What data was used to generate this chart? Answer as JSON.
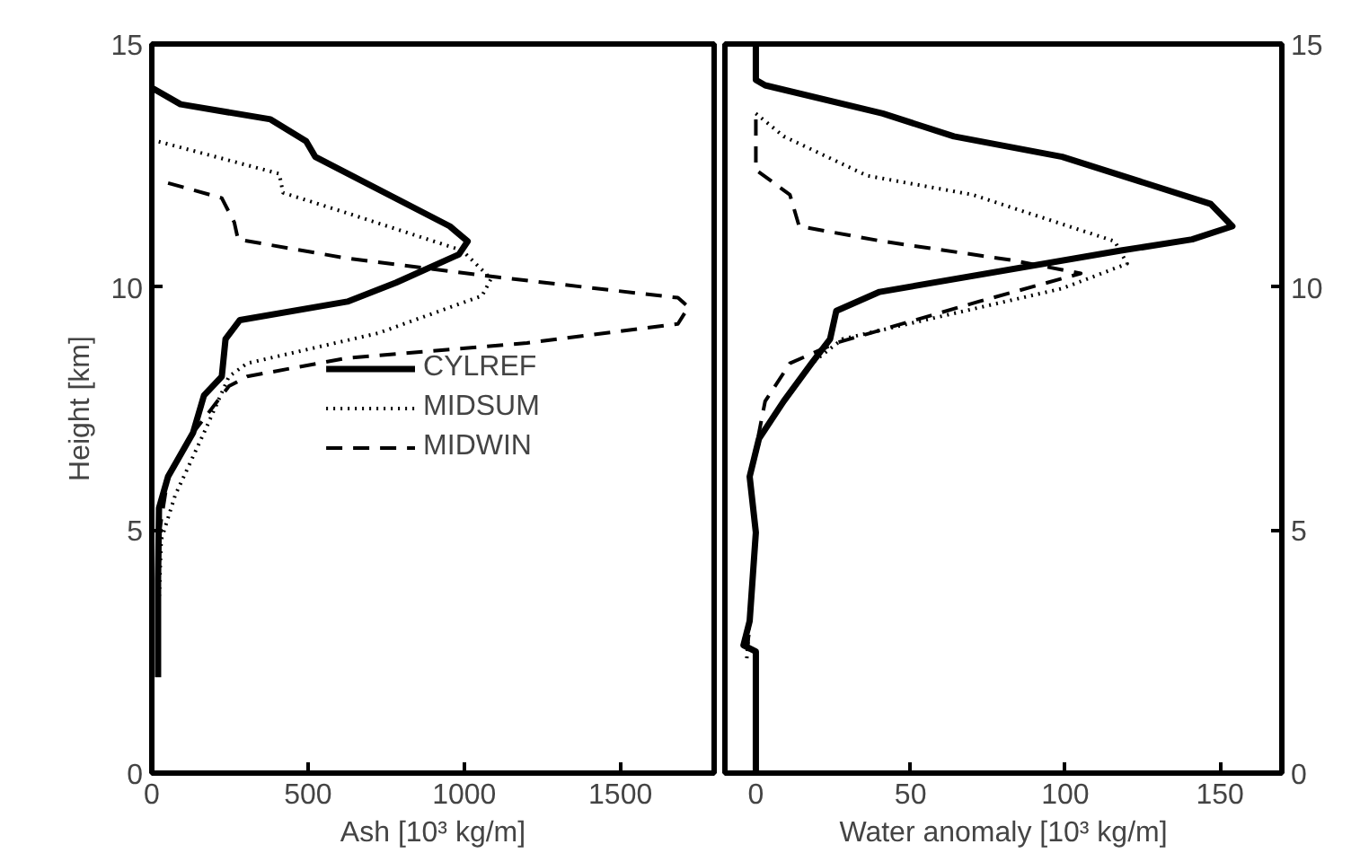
{
  "chart_data": [
    {
      "type": "line",
      "orientation": "horizontal",
      "xlabel": "Ash [10³ kg/m]",
      "ylabel": "Height [km]",
      "xlim": [
        0,
        1800
      ],
      "xticks": [
        0,
        500,
        1000,
        1500
      ],
      "ylim": [
        0,
        15
      ],
      "yticks": [
        0,
        5,
        10,
        15
      ],
      "grid": false,
      "legend": "center",
      "series": [
        {
          "name": "CYLREF",
          "color": "#000000",
          "line_style": "solid",
          "x": [
            14.1,
            13.76,
            13.45,
            13.0,
            12.68,
            11.25,
            10.94,
            10.67,
            10.09,
            9.7,
            9.32,
            8.93,
            8.16,
            7.77,
            7.0,
            6.1,
            5.45,
            4.0,
            3.0,
            1.97
          ],
          "values": [
            0,
            92,
            380,
            494,
            523,
            954,
            1011,
            983,
            782,
            626,
            282,
            236,
            224,
            167,
            132,
            52,
            23,
            20,
            20,
            20
          ]
        },
        {
          "name": "MIDSUM",
          "color": "#000000",
          "line_style": "dotted",
          "x": [
            13.03,
            12.33,
            11.94,
            11.52,
            10.75,
            10.17,
            9.82,
            9.05,
            8.43,
            8.16,
            7.0,
            5.72,
            4.8,
            3.0,
            2.0
          ],
          "values": [
            0,
            408,
            420,
            626,
            994,
            1086,
            1057,
            724,
            305,
            247,
            167,
            75,
            30,
            20,
            20
          ]
        },
        {
          "name": "MIDWIN",
          "color": "#000000",
          "line_style": "dashed",
          "x": [
            12.14,
            11.83,
            11.33,
            10.98,
            10.59,
            10.2,
            9.78,
            9.59,
            9.24,
            8.85,
            8.54,
            8.16,
            7.96,
            7.0,
            6.1,
            5.0,
            3.0,
            2.0
          ],
          "values": [
            52,
            224,
            264,
            276,
            626,
            1109,
            1684,
            1718,
            1684,
            1201,
            626,
            305,
            247,
            132,
            52,
            25,
            20,
            20
          ]
        }
      ]
    },
    {
      "type": "line",
      "orientation": "horizontal",
      "xlabel": "Water anomaly [10³ kg/m]",
      "xlim": [
        -10,
        170
      ],
      "xticks": [
        0,
        50,
        100,
        150
      ],
      "ylim": [
        0,
        15
      ],
      "yticks": [
        0,
        5,
        10,
        15
      ],
      "grid": false,
      "series": [
        {
          "color": "#000000",
          "line_style": "solid",
          "x": [
            15.0,
            14.26,
            14.15,
            13.57,
            13.1,
            12.68,
            11.71,
            11.25,
            10.98,
            10.75,
            9.9,
            9.51,
            8.93,
            8.43,
            7.65,
            6.88,
            6.1,
            4.95,
            3.13,
            2.63,
            2.5,
            0
          ],
          "values": [
            0,
            0,
            3,
            41,
            64,
            99,
            147,
            154,
            141,
            118,
            40,
            26,
            24,
            18,
            9,
            1,
            -2,
            0,
            -2,
            -4,
            0,
            0
          ]
        },
        {
          "color": "#000000",
          "line_style": "dotted",
          "x": [
            13.57,
            13.1,
            12.29,
            11.9,
            10.94,
            10.48,
            9.97,
            8.93,
            8.43,
            7.65,
            7.0,
            6.1,
            4.95,
            3.13,
            2.3
          ],
          "values": [
            0,
            9,
            36,
            70,
            116,
            120,
            99,
            28,
            18,
            9,
            2,
            -2,
            0,
            -2,
            -3
          ]
        },
        {
          "color": "#000000",
          "line_style": "dashed",
          "x": [
            13.45,
            12.41,
            11.9,
            11.25,
            10.94,
            10.55,
            10.28,
            9.7,
            8.85,
            8.43,
            7.65,
            7.0,
            6.1,
            4.95,
            3.13,
            2.3
          ],
          "values": [
            0,
            0,
            11,
            14,
            41,
            83,
            105,
            72,
            26,
            11,
            3,
            1,
            -2,
            0,
            -2,
            -3
          ]
        }
      ]
    }
  ]
}
